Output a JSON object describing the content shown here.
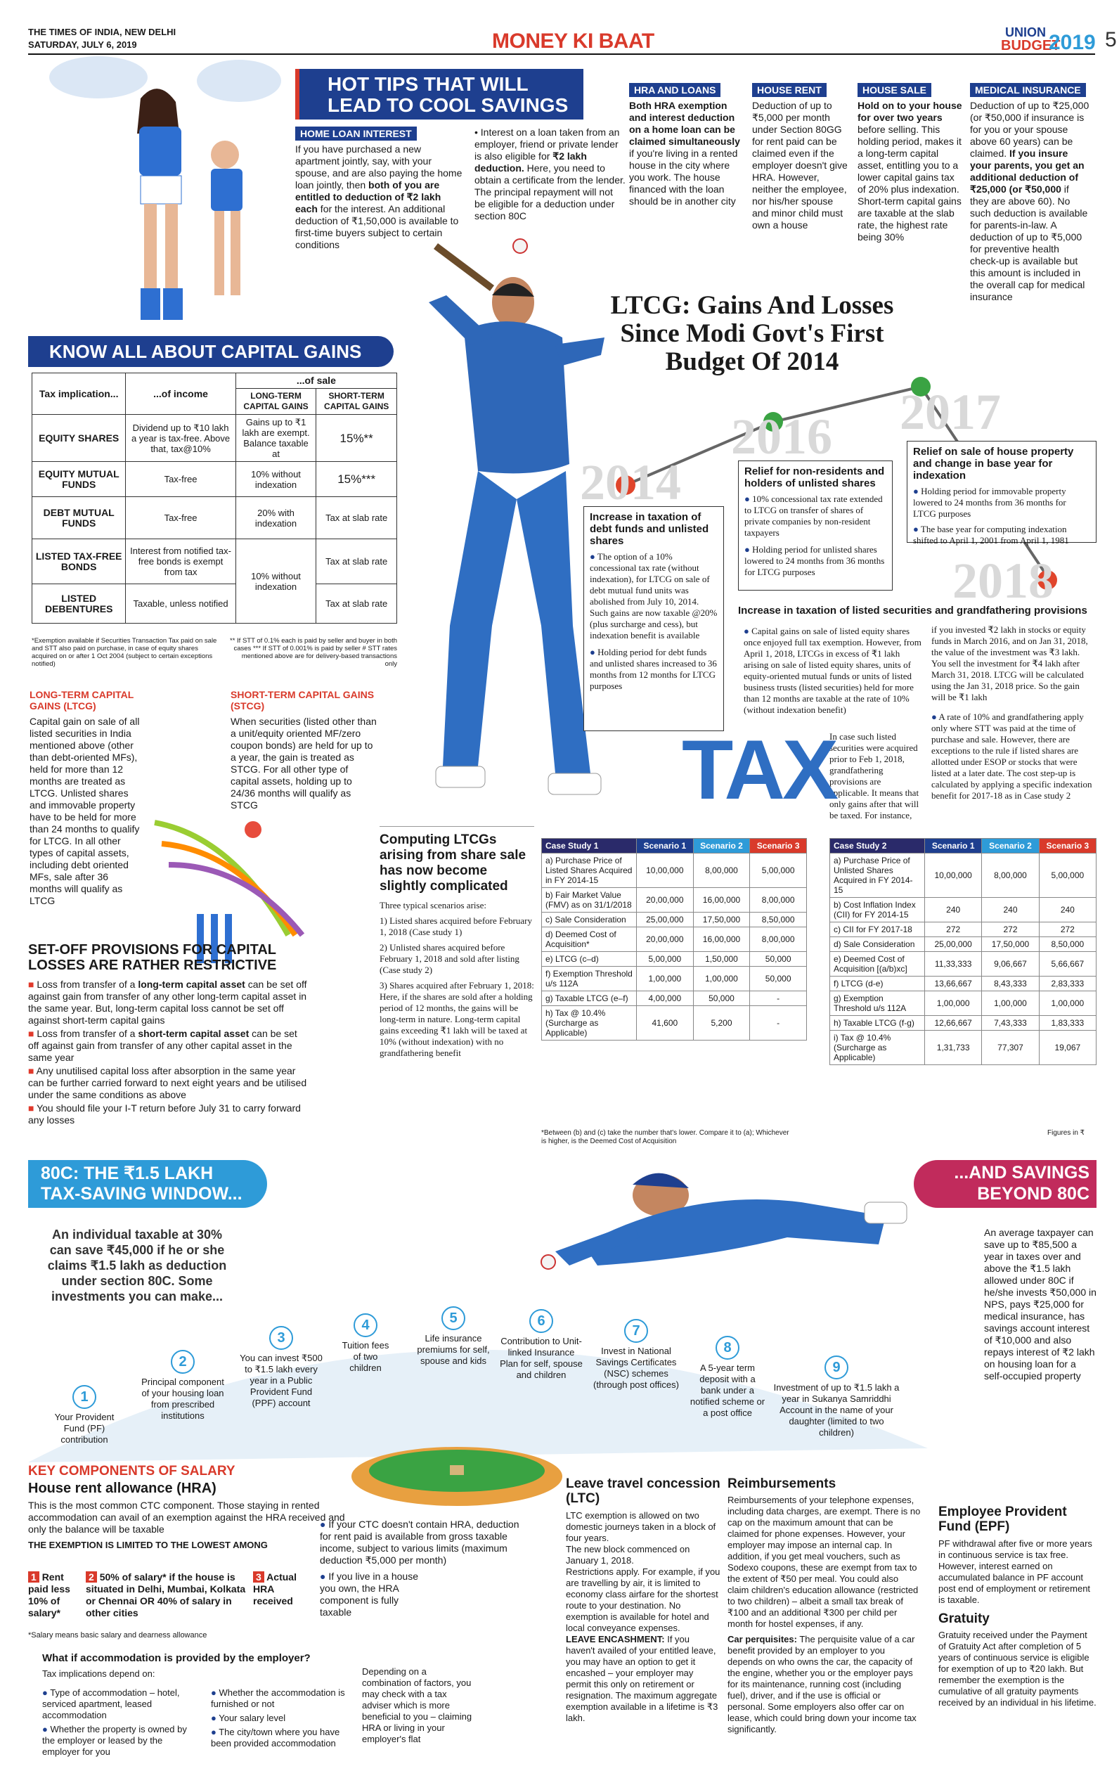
{
  "masthead": {
    "paper": "THE TIMES OF INDIA, NEW DELHI",
    "date": "SATURDAY, JULY 6, 2019",
    "section": "MONEY KI BAAT",
    "union": "UNION",
    "budget": "BUDGET",
    "year": "2019",
    "page": "5"
  },
  "hot_tips": {
    "title_l1": "HOT TIPS THAT WILL",
    "title_l2": "LEAD TO COOL SAVINGS"
  },
  "home_loan": {
    "tag": "HOME LOAN INTEREST",
    "text1a": "If you have purchased a new apartment jointly, say, with your spouse, and are also paying the home loan jointly, then ",
    "text1b": "both of you are entitled to deduction of ₹2 lakh each",
    "text1c": " for the interest. An additional deduction of ₹1,50,000 is available to first-time buyers subject to certain conditions",
    "text2a": "• Interest on a loan taken from an employer, friend or private lender is also eligible for ",
    "text2b": "₹2 lakh deduction.",
    "text2c": " Here, you need to obtain a certificate from the lender. The principal repayment will not be eligible for a deduction under section 80C"
  },
  "hra_loans": {
    "tag": "HRA AND LOANS",
    "bold": "Both HRA exemption and interest deduction on a home loan can be claimed simultaneously",
    "text": " if you're living in a rented house in the city where you work. The house financed with the loan should be in another city"
  },
  "house_rent": {
    "tag": "HOUSE RENT",
    "text": "Deduction of up to ₹5,000 per month under Section 80GG for rent paid can be claimed even if the employer doesn't give HRA. However, neither the employee, nor his/her spouse and minor child must own a house"
  },
  "house_sale": {
    "tag": "HOUSE SALE",
    "bold": "Hold on to your house for over two years",
    "text": " before selling. This holding period, makes it a long-term capital asset, entitling you to a lower capital gains tax of 20% plus indexation. Short-term capital gains are taxable at the slab rate, the highest rate being 30%"
  },
  "medical": {
    "tag": "MEDICAL INSURANCE",
    "text1": "Deduction of up to ₹25,000 (or ₹50,000 if insurance is for you or your spouse above 60 years) can be claimed. ",
    "bold": "If you insure your parents, you get an additional deduction of ₹25,000 (or ₹50,000",
    "text2": " if they are above 60). No such deduction is available for parents-in-law. A deduction of up to ₹5,000 for preventive health check-up is available but this amount is included in the overall cap for medical insurance"
  },
  "ltcg_title": {
    "l1": "LTCG: Gains And Losses",
    "l2": "Since Modi Govt's First",
    "l3": "Budget Of 2014"
  },
  "capital_gains": {
    "banner": "KNOW ALL ABOUT CAPITAL GAINS",
    "headers": {
      "implication": "Tax implication...",
      "income": "...of income",
      "of_sale": "...of sale",
      "lt": "LONG-TERM CAPITAL GAINS",
      "st": "SHORT-TERM CAPITAL GAINS"
    },
    "rows": [
      {
        "name": "EQUITY SHARES",
        "income": "Dividend up to ₹10 lakh a year is tax-free. Above that, tax@10%",
        "lt": "Gains up to ₹1 lakh are exempt. Balance taxable at",
        "st": "15%**"
      },
      {
        "name": "EQUITY MUTUAL FUNDS",
        "income": "Tax-free",
        "lt": "10% without indexation",
        "st": "15%***"
      },
      {
        "name": "DEBT MUTUAL FUNDS",
        "income": "Tax-free",
        "lt": "20% with indexation",
        "st": "Tax at slab rate"
      },
      {
        "name": "LISTED TAX-FREE BONDS",
        "income": "Interest from notified tax-free bonds is exempt from tax",
        "lt": "10% without indexation",
        "st": "Tax at slab rate"
      },
      {
        "name": "LISTED DEBENTURES",
        "income": "Taxable, unless notified",
        "lt": "",
        "st": "Tax at slab rate"
      }
    ],
    "foot1": "*Exemption available if Securities Transaction Tax paid on sale and STT also paid on purchase, in case of equity shares acquired on or after 1 Oct 2004 (subject to certain exceptions notified)",
    "foot2": "** If STT of 0.1% each is paid by seller and buyer in both cases *** If STT of 0.001% is paid by seller # STT rates mentioned above are for delivery-based transactions only"
  },
  "ltcg_def": {
    "title": "LONG-TERM CAPITAL GAINS (LTCG)",
    "text": "Capital gain on sale of all listed securities in India mentioned above (other than debt-oriented MFs), held for more than 12 months are treated as LTCG. Unlisted shares and immovable property have to be held for more than 24 months to qualify for LTCG. In all other types of capital assets, including debt oriented MFs, sale after 36 months will qualify as LTCG"
  },
  "stcg_def": {
    "title": "SHORT-TERM CAPITAL GAINS (STCG)",
    "text": "When securities (listed other than a unit/equity oriented MF/zero coupon bonds) are held for up to a year, the gain is treated as STCG. For all other type of capital assets, holding up to 24/36 months will qualify as STCG"
  },
  "setoff": {
    "title_l1": "SET-OFF PROVISIONS FOR CAPITAL",
    "title_l2": "LOSSES ARE RATHER RESTRICTIVE",
    "items": [
      {
        "a": "Loss from transfer of a ",
        "b": "long-term capital asset",
        "c": " can be set off against gain from transfer of any other long-term capital asset in the same year. But, long-term capital loss cannot be set off against short-term capital gains"
      },
      {
        "a": "Loss from transfer of a ",
        "b": "short-term capital asset",
        "c": " can be set off against gain from transfer of any other capital asset in the same year"
      },
      {
        "a": "Any unutilised capital loss after absorption in the same year can be further carried forward to next eight years and be utilised under the same conditions as above",
        "b": "",
        "c": ""
      },
      {
        "a": "You should file your I-T return before July 31 to carry forward any losses",
        "b": "",
        "c": ""
      }
    ]
  },
  "timeline": {
    "y2014": "2014",
    "y2016": "2016",
    "y2017": "2017",
    "y2018": "2018",
    "b2014": {
      "title": "Increase in taxation of debt funds and unlisted shares",
      "p1": "The option of a 10% concessional tax rate (without indexation), for LTCG on sale of debt mutual fund units was abolished from July 10, 2014. Such gains are now taxable @20% (plus surcharge and cess), but indexation benefit is available",
      "p2": "Holding period for debt funds and unlisted shares increased to 36 months from 12 months for LTCG purposes"
    },
    "b2016": {
      "title": "Relief for non-residents and holders of unlisted shares",
      "p1": "10% concessional tax rate extended to LTCG on transfer of shares of private companies by non-resident taxpayers",
      "p2": "Holding period for unlisted shares lowered to 24 months from 36 months for LTCG purposes"
    },
    "b2017": {
      "title": "Relief on sale of house property and change in base year for indexation",
      "p1": "Holding period for immovable property lowered to 24 months from 36 months for LTCG purposes",
      "p2": "The base year for computing indexation shifted to April 1, 2001 from April 1, 1981"
    },
    "b2018": {
      "title": "Increase in taxation of listed securities and grandfathering provisions",
      "p1": "Capital gains on sale of listed equity shares once enjoyed full tax exemption. However, from April 1, 2018, LTCGs in excess of ₹1 lakh arising on sale of listed equity shares, units of equity-oriented mutual funds or units of listed business trusts (listed securities) held for more than 12 months are taxable at the rate of 10% (without indexation benefit)",
      "p2": "In case such listed securities were acquired prior to Feb 1, 2018, grandfathering provisions are applicable. It means that only gains after that will be taxed. For instance,",
      "p3": "if you invested ₹2 lakh in stocks or equity funds in March 2016, and on Jan 31, 2018, the value of the investment was ₹3 lakh. You sell the investment for ₹4 lakh after March 31, 2018. LTCG will be calculated using the Jan 31, 2018 price. So the gain will be ₹1 lakh",
      "p4": "A rate of 10% and grandfathering apply only where STT was paid at the time of purchase and sale. However, there are exceptions to the rule if listed shares are allotted under ESOP or stocks that were listed at a later date. The cost step-up is calculated by applying a specific indexation benefit for 2017-18 as in Case study 2"
    }
  },
  "tax_word": "TAX",
  "computing": {
    "title": "Computing LTCGs arising from share sale has now become slightly complicated",
    "intro": "Three typical scenarios arise:",
    "s1": "1) Listed shares acquired before February 1, 2018 (Case study 1)",
    "s2": "2) Unlisted shares acquired before February 1, 2018 and sold after listing (Case study 2)",
    "s3": "3) Shares acquired after February 1, 2018: Here, if the shares are sold after a holding period of 12 months, the gains will be long-term in nature. Long-term capital gains exceeding ₹1 lakh will be taxed at 10% (without indexation) with no grandfathering benefit"
  },
  "case1": {
    "title": "Case Study 1",
    "cols": [
      "Scenario 1",
      "Scenario 2",
      "Scenario 3"
    ],
    "rows": [
      [
        "a) Purchase Price of Listed Shares Acquired in FY 2014-15",
        "10,00,000",
        "8,00,000",
        "5,00,000"
      ],
      [
        "b) Fair Market Value (FMV) as on 31/1/2018",
        "20,00,000",
        "16,00,000",
        "8,00,000"
      ],
      [
        "c) Sale Consideration",
        "25,00,000",
        "17,50,000",
        "8,50,000"
      ],
      [
        "d) Deemed Cost of Acquisition*",
        "20,00,000",
        "16,00,000",
        "8,00,000"
      ],
      [
        "e) LTCG (c–d)",
        "5,00,000",
        "1,50,000",
        "50,000"
      ],
      [
        "f) Exemption Threshold u/s 112A",
        "1,00,000",
        "1,00,000",
        "50,000"
      ],
      [
        "g) Taxable LTCG (e–f)",
        "4,00,000",
        "50,000",
        "-"
      ],
      [
        "h) Tax @ 10.4% (Surcharge as Applicable)",
        "41,600",
        "5,200",
        "-"
      ]
    ]
  },
  "case2": {
    "title": "Case Study 2",
    "cols": [
      "Scenario 1",
      "Scenario 2",
      "Scenario 3"
    ],
    "rows": [
      [
        "a) Purchase Price of Unlisted Shares Acquired in FY 2014-15",
        "10,00,000",
        "8,00,000",
        "5,00,000"
      ],
      [
        "b) Cost Inflation Index (CII) for FY 2014-15",
        "240",
        "240",
        "240"
      ],
      [
        "c) CII for FY 2017-18",
        "272",
        "272",
        "272"
      ],
      [
        "d) Sale Consideration",
        "25,00,000",
        "17,50,000",
        "8,50,000"
      ],
      [
        "e) Deemed Cost of Acquisition [(a/b)xc]",
        "11,33,333",
        "9,06,667",
        "5,66,667"
      ],
      [
        "f) LTCG (d-e)",
        "13,66,667",
        "8,43,333",
        "2,83,333"
      ],
      [
        "g) Exemption Threshold u/s 112A",
        "1,00,000",
        "1,00,000",
        "1,00,000"
      ],
      [
        "h) Taxable LTCG (f-g)",
        "12,66,667",
        "7,43,333",
        "1,83,333"
      ],
      [
        "i) Tax @ 10.4% (Surcharge as Applicable)",
        "1,31,733",
        "77,307",
        "19,067"
      ]
    ]
  },
  "case_note": "*Between (b) and (c) take the number that's lower. Compare it to (a); Whichever is higher, is the Deemed Cost of Acquisition",
  "figures_note": "Figures in ₹",
  "sec80c": {
    "banner_l1": "80C: THE ₹1.5 LAKH",
    "banner_l2": "TAX-SAVING WINDOW...",
    "banner_r_l1": "...AND SAVINGS",
    "banner_r_l2": "BEYOND 80C",
    "intro": "An individual taxable at 30% can save ₹45,000 if he or she claims ₹1.5 lakh as deduction under section 80C. Some investments you can make...",
    "right_text": "An average taxpayer can save up to ₹85,500 a year in taxes over and above the ₹1.5 lakh allowed under 80C if he/she invests ₹50,000 in NPS, pays ₹25,000 for medical insurance, has savings account interest of ₹10,000 and also repays interest of ₹2 lakh on housing loan for a self-occupied property",
    "items": [
      {
        "n": "1",
        "t": "Your Provident Fund (PF) contribution"
      },
      {
        "n": "2",
        "t": "Principal component of your housing loan from prescribed institutions"
      },
      {
        "n": "3",
        "t": "You can invest ₹500 to ₹1.5 lakh every year in a Public Provident Fund (PPF) account"
      },
      {
        "n": "4",
        "t": "Tuition fees of two children"
      },
      {
        "n": "5",
        "t": "Life insurance premiums for self, spouse and kids"
      },
      {
        "n": "6",
        "t": "Contribution to Unit-linked Insurance Plan for self, spouse and children"
      },
      {
        "n": "7",
        "t": "Invest in National Savings Certificates (NSC) schemes (through post offices)"
      },
      {
        "n": "8",
        "t": "A 5-year term deposit with a bank under a notified scheme or a post office"
      },
      {
        "n": "9",
        "t": "Investment of up to ₹1.5 lakh a year in Sukanya Samriddhi Account in the name of your daughter (limited to two children)"
      }
    ]
  },
  "salary": {
    "title": "KEY COMPONENTS OF SALARY",
    "hra_title": "House rent allowance (HRA)",
    "hra_text": "This is the most common CTC component. Those staying in rented accommodation can avail of an exemption against the HRA received and only the balance will be taxable",
    "limit": "THE EXEMPTION IS LIMITED TO THE LOWEST AMONG",
    "opt1": "Rent paid less 10% of salary*",
    "opt2": "50% of salary* if the house is situated in Delhi, Mumbai, Kolkata or Chennai OR 40% of salary in other cities",
    "opt3": "Actual HRA received",
    "salary_note": "*Salary means basic salary and dearness allowance",
    "no_hra1": "If your CTC doesn't contain HRA, deduction for rent paid is available from gross taxable income, subject to various limits (maximum deduction ₹5,000 per month)",
    "no_hra2": "If you live in a house you own, the HRA component is fully taxable",
    "employer_q": "What if accommodation is provided by the employer?",
    "depends": "Tax implications depend on:",
    "d1": "Type of accommodation – hotel, serviced apartment, leased accommodation",
    "d2": "Whether the property is owned by the employer or leased by the employer for you",
    "d3": "Whether the accommodation is furnished or not",
    "d4": "Your salary level",
    "d5": "The city/town where you have been provided accommodation",
    "combo": "Depending on a combination of factors, you may check with a tax adviser which is more beneficial to you – claiming HRA or living in your employer's flat"
  },
  "ltc": {
    "title": "Leave travel concession (LTC)",
    "p1": "LTC exemption is allowed on two domestic journeys taken in a block of four years.",
    "p2": "The new block commenced on January 1, 2018.",
    "p3": "Restrictions apply. For example, if you are travelling by air, it is limited to economy class airfare for the shortest route to your destination. No exemption is available for hotel and local conveyance expenses.",
    "enc_h": "LEAVE ENCASHMENT:",
    "enc": " If you haven't availed of your entitled leave, you may have an option to get it encashed – your employer may permit this only on retirement or resignation. The maximum aggregate exemption available in a lifetime is ₹3 lakh."
  },
  "reimb": {
    "title": "Reimbursements",
    "p1": "Reimbursements of your telephone expenses, including data charges, are exempt. There is no cap on the maximum amount that can be claimed for phone expenses. However, your employer may impose an internal cap. In addition, if you get meal vouchers, such as Sodexo coupons, these are exempt from tax to the extent of ₹50 per meal. You could also claim children's education allowance (restricted to two children) – albeit a small tax break of ₹100 and an additional ₹300 per child per month for hostel expenses, if any.",
    "perq_h": "Car perquisites:",
    "perq": " The perquisite value of a car benefit provided by an employer to you depends on who owns the car, the capacity of the engine, whether you or the employer pays for its maintenance, running cost (including fuel), driver, and if the use is official or personal. Some employers also offer car on lease, which could bring down your income tax significantly."
  },
  "epf": {
    "title": "Employee Provident Fund (EPF)",
    "text": "PF withdrawal after five or more years in continuous service is tax free. However, interest earned on accumulated balance in PF account post end of employment or retirement is taxable.",
    "grat_title": "Gratuity",
    "grat": "Gratuity received under the Payment of Gratuity Act after completion of 5 years of continuous service is eligible for exemption of up to ₹20 lakh. But remember the exemption is the cumulative of all gratuity payments received by an individual in his lifetime."
  },
  "colors": {
    "navy": "#1e3f8f",
    "red": "#d93a2b",
    "cyan": "#2e9bd8",
    "green": "#3aa343"
  },
  "icons": [
    "thumbs-down-icon",
    "thumbs-up-icon",
    "cricket-stumps-icon",
    "cricket-ball-icon",
    "stadium-icon"
  ]
}
